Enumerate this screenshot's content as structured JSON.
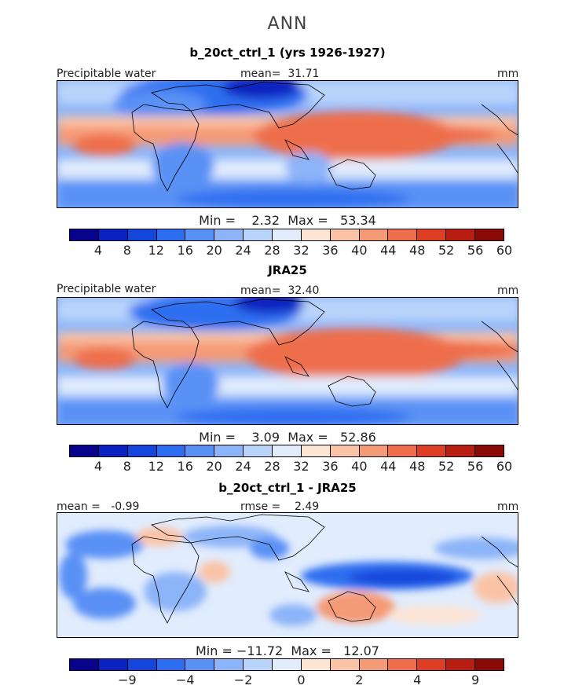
{
  "figure": {
    "season": "ANN"
  },
  "panels": [
    {
      "title": "b_20ct_ctrl_1 (yrs 1926-1927)",
      "left_label": "Precipitable water",
      "center_label": "mean=  31.71",
      "right_label": "mm",
      "stats": "Min =    2.32  Max =   53.34"
    },
    {
      "title": "JRA25",
      "left_label": "Precipitable water",
      "center_label": "mean=  32.40",
      "right_label": "mm",
      "stats": "Min =    3.09  Max =   52.86"
    },
    {
      "title": "b_20ct_ctrl_1 - JRA25",
      "left_label": "mean =   -0.99",
      "center_label": "rmse =    2.49",
      "right_label": "mm",
      "stats": "Min = −11.72  Max =   12.07"
    }
  ],
  "colorbars": {
    "abs": {
      "colors": [
        "#08038c",
        "#0a22c0",
        "#1446dc",
        "#2d6ef0",
        "#5a91f5",
        "#8cb4f8",
        "#b9d4fb",
        "#e1ecfd",
        "#fde5d5",
        "#fbc3a6",
        "#f59a76",
        "#ee6e4c",
        "#dd3e24",
        "#b91e12",
        "#8a0a08"
      ],
      "labels": [
        "4",
        "8",
        "12",
        "16",
        "20",
        "24",
        "28",
        "32",
        "36",
        "40",
        "44",
        "48",
        "52",
        "56",
        "60"
      ]
    },
    "diff": {
      "colors": [
        "#08038c",
        "#0a22c0",
        "#1446dc",
        "#2d6ef0",
        "#5a91f5",
        "#8cb4f8",
        "#b9d4fb",
        "#e1ecfd",
        "#fde5d5",
        "#fbc3a6",
        "#f59a76",
        "#ee6e4c",
        "#dd3e24",
        "#b91e12",
        "#8a0a08"
      ],
      "labels": [
        "−9",
        "−4",
        "−2",
        "0",
        "2",
        "4",
        "9"
      ],
      "label_boundary_index": [
        2,
        4,
        6,
        8,
        10,
        12,
        14
      ]
    }
  }
}
